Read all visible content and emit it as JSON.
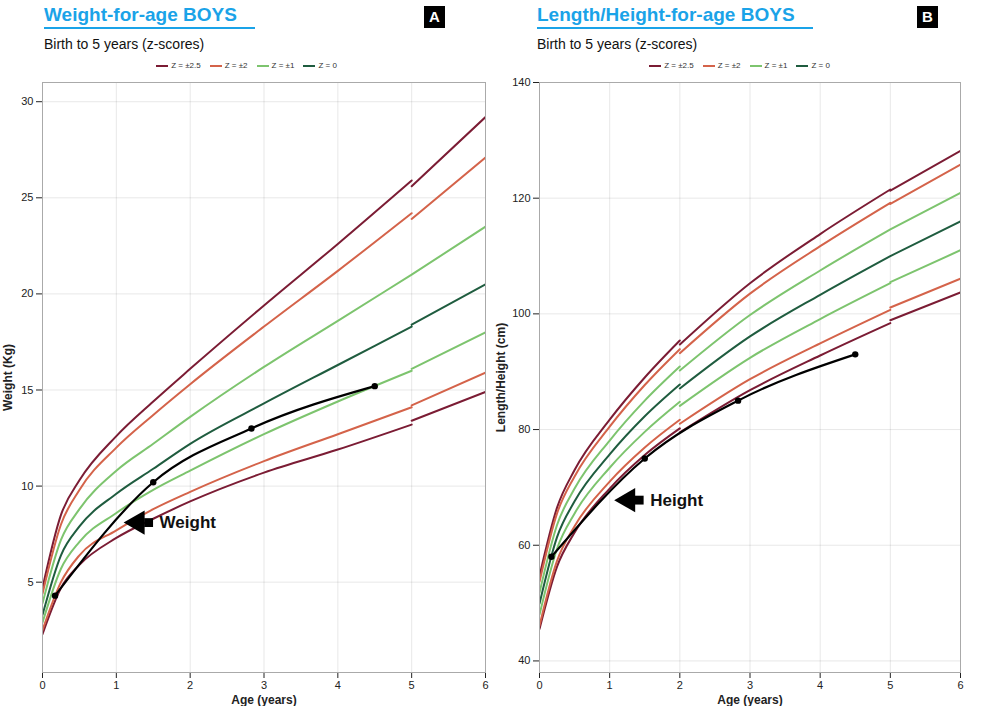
{
  "chart_data": [
    {
      "type": "line",
      "panel": "A",
      "title": "Weight-for-age BOYS",
      "subtitle": "Birth to 5 years (z-scores)",
      "x_label": "Age (years)",
      "y_label": "Weight (Kg)",
      "xlim": [
        0,
        6
      ],
      "xticks": [
        0,
        1,
        2,
        3,
        4,
        5,
        6
      ],
      "ylim": [
        0.3,
        31
      ],
      "yticks": [
        5,
        10,
        15,
        20,
        25,
        30
      ],
      "grid": true,
      "x": [
        0,
        0.25,
        0.5,
        1,
        1.5,
        2,
        3,
        4,
        5,
        5,
        5,
        6
      ],
      "series": [
        {
          "name": "Z = ±2.5",
          "color": "#7b1c34",
          "lines": [
            [
              4.7,
              8.5,
              10.3,
              12.6,
              14.4,
              16.1,
              19.4,
              22.6,
              25.9,
              null,
              25.6,
              29.2
            ],
            [
              2.3,
              4.7,
              5.9,
              7.3,
              8.3,
              9.2,
              10.7,
              11.9,
              13.2,
              null,
              13.4,
              14.9
            ]
          ]
        },
        {
          "name": "Z = ±2",
          "color": "#d4634a",
          "lines": [
            [
              4.4,
              8.0,
              9.8,
              12.0,
              13.7,
              15.3,
              18.3,
              21.2,
              24.2,
              null,
              23.9,
              27.1
            ],
            [
              2.5,
              5.0,
              6.4,
              7.7,
              8.8,
              9.7,
              11.3,
              12.7,
              14.1,
              null,
              14.2,
              15.9
            ]
          ]
        },
        {
          "name": "Z = ±1",
          "color": "#7dc46e",
          "lines": [
            [
              3.9,
              7.2,
              8.8,
              10.8,
              12.2,
              13.6,
              16.2,
              18.6,
              21.0,
              null,
              21.0,
              23.5
            ],
            [
              2.9,
              5.7,
              7.1,
              8.6,
              9.8,
              10.8,
              12.7,
              14.4,
              16.0,
              null,
              16.1,
              18.0
            ]
          ]
        },
        {
          "name": "Z = 0",
          "color": "#1f5c3f",
          "lines": [
            [
              3.3,
              6.4,
              7.9,
              9.6,
              10.9,
              12.2,
              14.3,
              16.3,
              18.3,
              null,
              18.4,
              20.5
            ]
          ]
        }
      ],
      "child": {
        "x": [
          0.17,
          1.5,
          2.83,
          4.5
        ],
        "values": [
          4.3,
          10.2,
          13.0,
          15.2
        ],
        "color": "#000000",
        "marker": "circle"
      },
      "annotation": {
        "text": "Weight",
        "x": 1.18,
        "y": 8.1
      },
      "legend": "top"
    },
    {
      "type": "line",
      "panel": "B",
      "title": "Length/Height-for-age BOYS",
      "subtitle": "Birth to 5 years (z-scores)",
      "x_label": "Age (years)",
      "y_label": "Length/Height (cm)",
      "xlim": [
        0,
        6
      ],
      "xticks": [
        0,
        1,
        2,
        3,
        4,
        5,
        6
      ],
      "ylim": [
        38,
        140
      ],
      "yticks": [
        40,
        60,
        80,
        100,
        120,
        140
      ],
      "grid": true,
      "x": [
        0,
        0.25,
        0.5,
        1,
        1.5,
        2,
        2,
        2,
        3,
        4,
        5,
        5,
        5,
        6
      ],
      "series": [
        {
          "name": "Z = ±2.5",
          "color": "#7b1c34",
          "lines": [
            [
              54.7,
              66.5,
              73.0,
              81.7,
              89.0,
              95.4,
              null,
              94.7,
              105.3,
              113.8,
              121.5,
              null,
              121.3,
              128.2
            ],
            [
              45.5,
              56.3,
              62.2,
              69.8,
              75.6,
              80.2,
              null,
              79.5,
              86.8,
              92.8,
              98.4,
              null,
              98.9,
              103.7
            ]
          ]
        },
        {
          "name": "Z = ±2",
          "color": "#d4634a",
          "lines": [
            [
              53.7,
              65.5,
              71.9,
              80.5,
              87.7,
              93.9,
              null,
              93.2,
              103.5,
              111.7,
              119.2,
              null,
              119.0,
              125.8
            ],
            [
              46.1,
              57.3,
              63.3,
              71.0,
              76.9,
              81.7,
              null,
              81.0,
              88.7,
              94.9,
              100.7,
              null,
              101.1,
              106.1
            ]
          ]
        },
        {
          "name": "Z = ±1",
          "color": "#7dc46e",
          "lines": [
            [
              51.8,
              63.5,
              69.8,
              78.1,
              85.0,
              90.9,
              null,
              90.2,
              99.8,
              107.5,
              114.6,
              null,
              114.6,
              120.9
            ],
            [
              48.0,
              59.4,
              65.5,
              73.4,
              79.6,
              84.8,
              null,
              84.1,
              92.4,
              99.1,
              105.3,
              null,
              105.5,
              111.0
            ]
          ]
        },
        {
          "name": "Z = 0",
          "color": "#1f5c3f",
          "lines": [
            [
              49.9,
              61.4,
              67.6,
              75.7,
              82.3,
              87.8,
              null,
              87.1,
              96.1,
              103.3,
              110.0,
              null,
              110.0,
              116.0
            ]
          ]
        }
      ],
      "child": {
        "x": [
          0.17,
          1.5,
          2.83,
          4.5
        ],
        "values": [
          58,
          75,
          85,
          93
        ],
        "color": "#000000",
        "marker": "circle"
      },
      "annotation": {
        "text": "Height",
        "x": 1.15,
        "y": 67.8
      },
      "legend": "top"
    }
  ]
}
